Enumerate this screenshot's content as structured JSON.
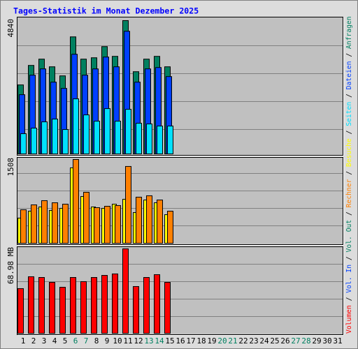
{
  "chart_data": [
    {
      "type": "bar",
      "title": "Tages-Statistik im Monat Dezember 2025",
      "ylim": [
        0,
        4840
      ],
      "yticks": [
        4840
      ],
      "series": [
        {
          "name": "Anfragen",
          "color": "#008060",
          "values": [
            2505,
            3213,
            3441,
            3163,
            2834,
            4250,
            3441,
            3491,
            3896,
            3542,
            4840,
            2985,
            3441,
            3542,
            3163,
            null,
            null,
            null,
            null,
            null,
            null,
            null,
            null,
            null,
            null,
            null,
            null,
            null,
            null,
            null,
            null
          ]
        },
        {
          "name": "Dateien",
          "color": "#0040ff",
          "values": [
            2150,
            2859,
            3087,
            2606,
            2378,
            3618,
            2859,
            3087,
            3517,
            3163,
            4453,
            2606,
            3087,
            3137,
            2808,
            null,
            null,
            null,
            null,
            null,
            null,
            null,
            null,
            null,
            null,
            null,
            null,
            null,
            null,
            null,
            null
          ]
        },
        {
          "name": "Seiten",
          "color": "#00e0ff",
          "values": [
            734,
            936,
            1164,
            1265,
            886,
            1999,
            1417,
            1189,
            1645,
            1189,
            1619,
            1113,
            1088,
            1012,
            1012,
            null,
            null,
            null,
            null,
            null,
            null,
            null,
            null,
            null,
            null,
            null,
            null,
            null,
            null,
            null,
            null
          ]
        }
      ]
    },
    {
      "type": "bar",
      "ylim": [
        0,
        1508
      ],
      "yticks": [
        1508
      ],
      "series": [
        {
          "name": "Besuche",
          "color": "#ffff00",
          "values": [
            453,
            578,
            654,
            591,
            629,
            1358,
            842,
            654,
            629,
            704,
            792,
            553,
            779,
            729,
            515,
            null,
            null,
            null,
            null,
            null,
            null,
            null,
            null,
            null,
            null,
            null,
            null,
            null,
            null,
            null,
            null
          ]
        },
        {
          "name": "Rechner",
          "color": "#ff8000",
          "values": [
            603,
            691,
            767,
            729,
            704,
            1508,
            918,
            641,
            666,
            679,
            1383,
            830,
            855,
            779,
            578,
            null,
            null,
            null,
            null,
            null,
            null,
            null,
            null,
            null,
            null,
            null,
            null,
            null,
            null,
            null,
            null
          ]
        }
      ]
    },
    {
      "type": "bar",
      "ylim": [
        0,
        68.98
      ],
      "yticks": [
        {
          "value": 68.98,
          "label": "68.98 MB"
        }
      ],
      "categories": [
        "1",
        "2",
        "3",
        "4",
        "5",
        "6",
        "7",
        "8",
        "9",
        "10",
        "11",
        "12",
        "13",
        "14",
        "15",
        "16",
        "17",
        "18",
        "19",
        "20",
        "21",
        "22",
        "23",
        "24",
        "25",
        "26",
        "27",
        "28",
        "29",
        "30",
        "31"
      ],
      "category_colors": [
        "#000000",
        "#000000",
        "#000000",
        "#000000",
        "#000000",
        "#008060",
        "#008060",
        "#000000",
        "#000000",
        "#000000",
        "#000000",
        "#000000",
        "#008060",
        "#008060",
        "#000000",
        "#000000",
        "#000000",
        "#000000",
        "#000000",
        "#008060",
        "#008060",
        "#000000",
        "#000000",
        "#000000",
        "#000000",
        "#000000",
        "#008060",
        "#008060",
        "#000000",
        "#000000",
        "#000000"
      ],
      "series": [
        {
          "name": "Volumen",
          "color": "#ff0000",
          "values": [
            36.5,
            46.2,
            45.6,
            41.6,
            37.6,
            45.6,
            42.2,
            45.6,
            47.3,
            48.5,
            68.98,
            38.2,
            45.6,
            47.9,
            41.6,
            null,
            null,
            null,
            null,
            null,
            null,
            null,
            null,
            null,
            null,
            null,
            null,
            null,
            null,
            null,
            null
          ]
        },
        {
          "name": "Vol. In",
          "color": "#0040ff",
          "values": [
            null,
            null,
            null,
            null,
            null,
            null,
            null,
            null,
            null,
            null,
            null,
            null,
            null,
            null,
            null,
            null,
            null,
            null,
            null,
            null,
            null,
            null,
            null,
            null,
            null,
            null,
            null,
            null,
            null,
            null,
            null
          ]
        },
        {
          "name": "Vol. Out",
          "color": "#008060",
          "values": [
            null,
            null,
            null,
            null,
            null,
            null,
            null,
            null,
            null,
            null,
            null,
            null,
            null,
            null,
            null,
            null,
            null,
            null,
            null,
            null,
            null,
            null,
            null,
            null,
            null,
            null,
            null,
            null,
            null,
            null,
            null
          ]
        }
      ]
    }
  ],
  "legend_separator": "/"
}
